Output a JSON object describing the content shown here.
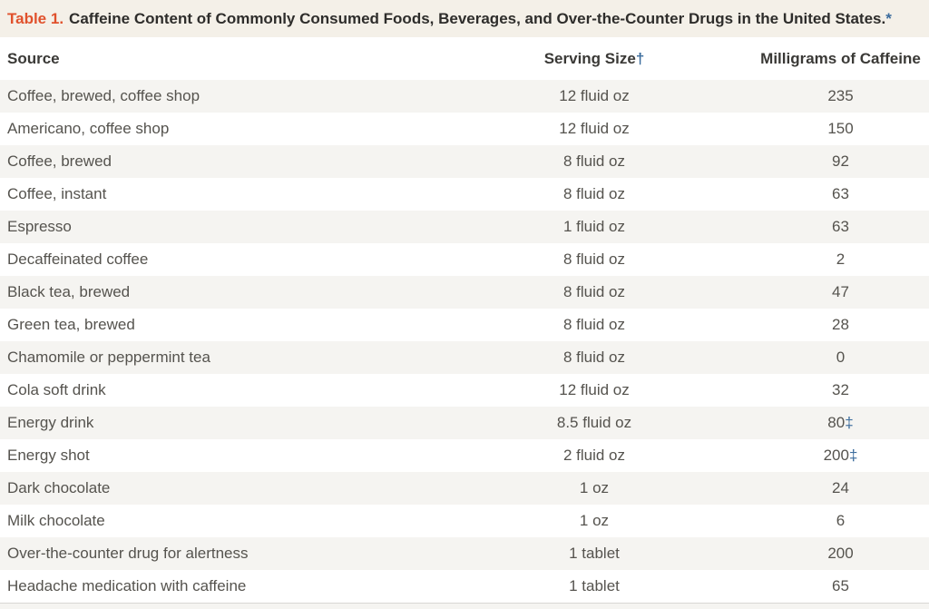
{
  "title": {
    "label": "Table 1.",
    "text": "Caffeine Content of Commonly Consumed Foods, Beverages, and Over-the-Counter Drugs in the United States.",
    "footnote_marker": "*"
  },
  "table": {
    "columns": [
      {
        "label": "Source",
        "marker": ""
      },
      {
        "label": "Serving Size",
        "marker": "†"
      },
      {
        "label": "Milligrams of Caffeine",
        "marker": ""
      }
    ],
    "rows": [
      {
        "source": "Coffee, brewed, coffee shop",
        "serving": "12 fluid oz",
        "mg": "235",
        "marker": ""
      },
      {
        "source": "Americano, coffee shop",
        "serving": "12 fluid oz",
        "mg": "150",
        "marker": ""
      },
      {
        "source": "Coffee, brewed",
        "serving": "8 fluid oz",
        "mg": "92",
        "marker": ""
      },
      {
        "source": "Coffee, instant",
        "serving": "8 fluid oz",
        "mg": "63",
        "marker": ""
      },
      {
        "source": "Espresso",
        "serving": "1 fluid oz",
        "mg": "63",
        "marker": ""
      },
      {
        "source": "Decaffeinated coffee",
        "serving": "8 fluid oz",
        "mg": "2",
        "marker": ""
      },
      {
        "source": "Black tea, brewed",
        "serving": "8 fluid oz",
        "mg": "47",
        "marker": ""
      },
      {
        "source": "Green tea, brewed",
        "serving": "8 fluid oz",
        "mg": "28",
        "marker": ""
      },
      {
        "source": "Chamomile or peppermint tea",
        "serving": "8 fluid oz",
        "mg": "0",
        "marker": ""
      },
      {
        "source": "Cola soft drink",
        "serving": "12 fluid oz",
        "mg": "32",
        "marker": ""
      },
      {
        "source": "Energy drink",
        "serving": "8.5 fluid oz",
        "mg": "80",
        "marker": "‡"
      },
      {
        "source": "Energy shot",
        "serving": "2 fluid oz",
        "mg": "200",
        "marker": "‡"
      },
      {
        "source": "Dark chocolate",
        "serving": "1 oz",
        "mg": "24",
        "marker": ""
      },
      {
        "source": "Milk chocolate",
        "serving": "1 oz",
        "mg": "6",
        "marker": ""
      },
      {
        "source": "Over-the-counter drug for alertness",
        "serving": "1 tablet",
        "mg": "200",
        "marker": ""
      },
      {
        "source": "Headache medication with caffeine",
        "serving": "1 tablet",
        "mg": "65",
        "marker": ""
      }
    ]
  },
  "colors": {
    "accent_orange": "#e0512c",
    "marker_blue": "#3a6b9c",
    "title_band_beige": "#f4f0e8",
    "row_stripe": "#f5f4f1"
  }
}
